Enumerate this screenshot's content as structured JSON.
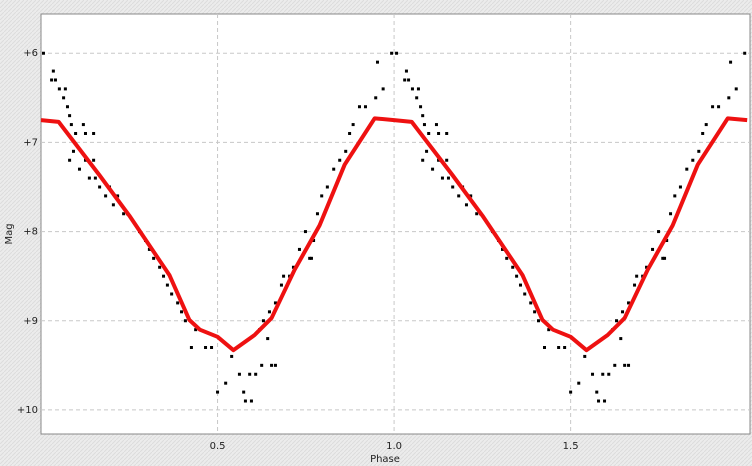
{
  "chart_data": {
    "type": "scatter",
    "xlabel": "Phase",
    "ylabel": "Mag",
    "xlim": [
      0,
      2.008
    ],
    "ylim": [
      10.27,
      5.56
    ],
    "xticks": [
      0.5,
      {
        "value": 1,
        "label": "1.0"
      },
      1.5
    ],
    "yticks": [
      {
        "value": 6,
        "label": "+6"
      },
      {
        "value": 7,
        "label": "+7"
      },
      {
        "value": 8,
        "label": "+8"
      },
      {
        "value": 9,
        "label": "+9"
      },
      {
        "value": 10,
        "label": "+10"
      }
    ],
    "grid": true,
    "series": [
      {
        "style": "points",
        "color": "#000000",
        "x": [
          0.007,
          0.035,
          0.03,
          0.041,
          0.052,
          0.069,
          0.064,
          0.075,
          0.081,
          0.086,
          0.098,
          0.12,
          0.126,
          0.149,
          0.081,
          0.092,
          0.109,
          0.126,
          0.137,
          0.154,
          0.149,
          0.166,
          0.183,
          0.194,
          0.205,
          0.217,
          0.234,
          0.245,
          0.279,
          0.296,
          0.307,
          0.319,
          0.336,
          0.347,
          0.358,
          0.37,
          0.387,
          0.398,
          0.409,
          0.426,
          0.466,
          0.483,
          0.438,
          0.5,
          0.523,
          0.54,
          0.562,
          0.574,
          0.579,
          0.596,
          0.591,
          0.608,
          0.625,
          0.642,
          0.653,
          0.664,
          0.619,
          0.63,
          0.647,
          0.664,
          0.681,
          0.687,
          0.704,
          0.715,
          0.732,
          0.749,
          0.761,
          0.766,
          0.772,
          0.783,
          0.795,
          0.811,
          0.829,
          0.846,
          0.863,
          0.874,
          0.884,
          0.902,
          0.919,
          0.948,
          0.969,
          0.953,
          0.993,
          1.007,
          1.035,
          1.03,
          1.041,
          1.052,
          1.069,
          1.064,
          1.075,
          1.081,
          1.086,
          1.098,
          1.12,
          1.126,
          1.149,
          1.081,
          1.092,
          1.109,
          1.126,
          1.137,
          1.154,
          1.149,
          1.166,
          1.183,
          1.194,
          1.205,
          1.217,
          1.234,
          1.245,
          1.279,
          1.296,
          1.307,
          1.319,
          1.336,
          1.347,
          1.358,
          1.37,
          1.387,
          1.398,
          1.409,
          1.426,
          1.466,
          1.483,
          1.438,
          1.5,
          1.523,
          1.54,
          1.562,
          1.574,
          1.579,
          1.596,
          1.591,
          1.608,
          1.625,
          1.642,
          1.653,
          1.664,
          1.619,
          1.63,
          1.647,
          1.664,
          1.681,
          1.687,
          1.704,
          1.715,
          1.732,
          1.749,
          1.761,
          1.766,
          1.772,
          1.783,
          1.795,
          1.811,
          1.829,
          1.846,
          1.863,
          1.874,
          1.884,
          1.902,
          1.919,
          1.948,
          1.969,
          1.953,
          1.993
        ],
        "values": [
          6.0,
          6.2,
          6.3,
          6.3,
          6.4,
          6.4,
          6.5,
          6.6,
          6.7,
          6.8,
          6.9,
          6.8,
          6.9,
          6.9,
          7.2,
          7.1,
          7.3,
          7.2,
          7.4,
          7.4,
          7.2,
          7.5,
          7.6,
          7.5,
          7.7,
          7.6,
          7.8,
          7.8,
          8.0,
          8.1,
          8.2,
          8.3,
          8.4,
          8.5,
          8.6,
          8.7,
          8.8,
          8.9,
          9.0,
          9.3,
          9.3,
          9.3,
          9.1,
          9.8,
          9.7,
          9.4,
          9.6,
          9.8,
          9.9,
          9.9,
          9.6,
          9.6,
          9.5,
          9.2,
          9.5,
          9.5,
          9.1,
          9.0,
          8.9,
          8.8,
          8.6,
          8.5,
          8.5,
          8.4,
          8.2,
          8.0,
          8.3,
          8.3,
          8.1,
          7.8,
          7.6,
          7.5,
          7.3,
          7.2,
          7.1,
          6.9,
          6.8,
          6.6,
          6.6,
          6.5,
          6.4,
          6.1,
          6.0,
          6.0,
          6.2,
          6.3,
          6.3,
          6.4,
          6.4,
          6.5,
          6.6,
          6.7,
          6.8,
          6.9,
          6.8,
          6.9,
          6.9,
          7.2,
          7.1,
          7.3,
          7.2,
          7.4,
          7.4,
          7.2,
          7.5,
          7.6,
          7.5,
          7.7,
          7.6,
          7.8,
          7.8,
          8.0,
          8.1,
          8.2,
          8.3,
          8.4,
          8.5,
          8.6,
          8.7,
          8.8,
          8.9,
          9.0,
          9.3,
          9.3,
          9.3,
          9.1,
          9.8,
          9.7,
          9.4,
          9.6,
          9.8,
          9.9,
          9.9,
          9.6,
          9.6,
          9.5,
          9.2,
          9.5,
          9.5,
          9.1,
          9.0,
          8.9,
          8.8,
          8.6,
          8.5,
          8.5,
          8.4,
          8.2,
          8.0,
          8.3,
          8.3,
          8.1,
          7.8,
          7.6,
          7.5,
          7.3,
          7.2,
          7.1,
          6.9,
          6.8,
          6.6,
          6.6,
          6.5,
          6.4,
          6.1,
          6.0
        ]
      },
      {
        "style": "line",
        "color": "#ee1111",
        "x": [
          0,
          0.05,
          0.166,
          0.25,
          0.364,
          0.42,
          0.45,
          0.5,
          0.545,
          0.605,
          0.653,
          0.718,
          0.789,
          0.86,
          0.945,
          1.0,
          1.05,
          1.166,
          1.25,
          1.364,
          1.42,
          1.45,
          1.5,
          1.545,
          1.605,
          1.653,
          1.718,
          1.789,
          1.86,
          1.945,
          2.0
        ],
        "values": [
          6.75,
          6.77,
          7.37,
          7.82,
          8.49,
          8.99,
          9.1,
          9.18,
          9.33,
          9.16,
          8.97,
          8.43,
          7.93,
          7.25,
          6.73,
          6.75,
          6.77,
          7.37,
          7.82,
          8.49,
          8.99,
          9.1,
          9.18,
          9.33,
          9.16,
          8.97,
          8.43,
          7.93,
          7.25,
          6.73,
          6.75
        ]
      }
    ]
  }
}
